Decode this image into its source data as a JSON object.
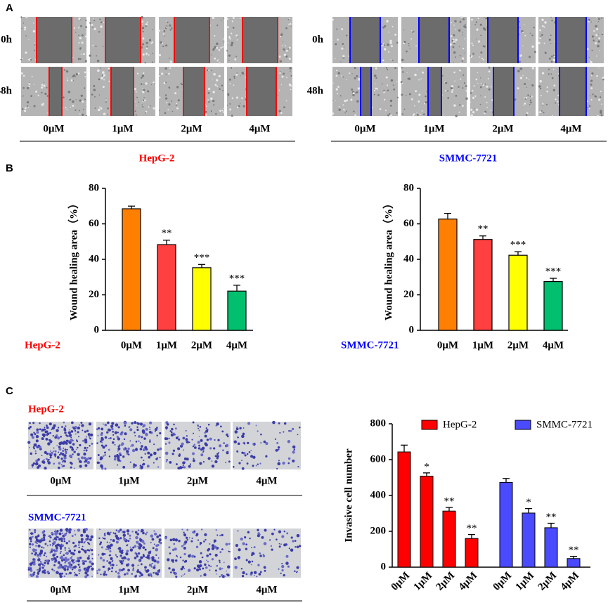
{
  "panel_labels": [
    "A",
    "B",
    "C"
  ],
  "wound_assay": {
    "time_points": [
      "0h",
      "48h"
    ],
    "concentrations": [
      "0μM",
      "1μM",
      "2μM",
      "4μM"
    ],
    "groups": [
      {
        "name": "HepG-2",
        "color": "#ff0000"
      },
      {
        "name": "SMMC-7721",
        "color": "#0000ff"
      }
    ]
  },
  "transwell": {
    "concentrations": [
      "0μM",
      "1μM",
      "2μM",
      "4μM"
    ],
    "groups": [
      {
        "name": "HepG-2",
        "color": "#ff0000"
      },
      {
        "name": "SMMC-7721",
        "color": "#0000ff"
      }
    ]
  },
  "chart_data": [
    {
      "type": "bar",
      "ylabel": "Wound healing area（%）",
      "group_label": "HepG-2",
      "group_label_color": "#ff0000",
      "categories": [
        "0μM",
        "1μM",
        "2μM",
        "4μM"
      ],
      "values": [
        68.5,
        48.3,
        35.3,
        22.1
      ],
      "errors": [
        1.5,
        2.5,
        1.8,
        3.3
      ],
      "significance": [
        null,
        "**",
        "***",
        "***"
      ],
      "colors": [
        "#ff8000",
        "#ff4040",
        "#ffff00",
        "#00c070"
      ],
      "ylim": [
        0,
        80
      ],
      "yticks": [
        0,
        20,
        40,
        60,
        80
      ]
    },
    {
      "type": "bar",
      "ylabel": "Wound healing area（%）",
      "group_label": "SMMC-7721",
      "group_label_color": "#0000ff",
      "categories": [
        "0μM",
        "1μM",
        "2μM",
        "4μM"
      ],
      "values": [
        62.7,
        51.2,
        42.3,
        27.5
      ],
      "errors": [
        3.2,
        2.0,
        2.0,
        1.8
      ],
      "significance": [
        null,
        "**",
        "***",
        "***"
      ],
      "colors": [
        "#ff8000",
        "#ff4040",
        "#ffff00",
        "#00c070"
      ],
      "ylim": [
        0,
        80
      ],
      "yticks": [
        0,
        20,
        40,
        60,
        80
      ]
    },
    {
      "type": "grouped_bar",
      "ylabel": "Invasive cell number",
      "categories": [
        "0μM",
        "1μM",
        "2μM",
        "4μM"
      ],
      "series": [
        {
          "name": "HepG-2",
          "color": "#ff0000",
          "values": [
            643,
            508,
            313,
            160
          ],
          "errors": [
            38,
            18,
            20,
            22
          ],
          "significance": [
            null,
            "*",
            "**",
            "**"
          ]
        },
        {
          "name": "SMMC-7721",
          "color": "#4a4aff",
          "values": [
            473,
            302,
            220,
            48
          ],
          "errors": [
            22,
            25,
            25,
            12
          ],
          "significance": [
            null,
            "*",
            "**",
            "**"
          ]
        }
      ],
      "ylim": [
        0,
        800
      ],
      "yticks": [
        0,
        200,
        400,
        600,
        800
      ]
    }
  ]
}
